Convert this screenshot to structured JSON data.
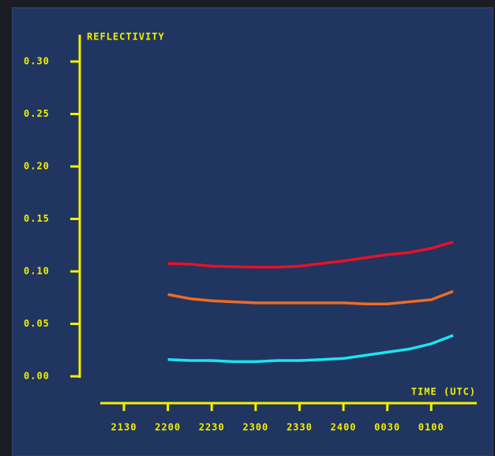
{
  "chart_data": {
    "type": "line",
    "y_label": "REFLECTIVITY",
    "x_label": "TIME (UTC)",
    "categories": [
      "2130",
      null,
      "2200",
      null,
      "2230",
      null,
      "2300",
      null,
      "2330",
      null,
      "2400",
      null,
      "0030",
      null,
      "0100",
      null
    ],
    "series": [
      {
        "color": "#e8102a",
        "values": [
          null,
          null,
          0.1075,
          0.107,
          0.105,
          0.1045,
          0.104,
          0.104,
          0.105,
          0.1075,
          0.11,
          0.113,
          0.116,
          0.118,
          0.122,
          0.128
        ]
      },
      {
        "color": "#f06a25",
        "values": [
          null,
          null,
          0.078,
          0.074,
          0.072,
          0.071,
          0.07,
          0.07,
          0.07,
          0.07,
          0.07,
          0.069,
          0.069,
          0.071,
          0.073,
          0.081
        ]
      },
      {
        "color": "#19e6f0",
        "values": [
          null,
          null,
          0.016,
          0.015,
          0.015,
          0.014,
          0.014,
          0.015,
          0.015,
          0.016,
          0.017,
          0.02,
          0.023,
          0.026,
          0.031,
          0.039
        ]
      }
    ],
    "ylim": [
      0,
      0.3
    ],
    "yticks": [
      {
        "value": 0,
        "label": "0.00"
      },
      0.05,
      {
        "value": 0.1,
        "label": "0.10"
      },
      0.15,
      {
        "value": 0.2,
        "label": "0.20"
      },
      0.25,
      {
        "value": 0.3,
        "label": "0.30"
      }
    ]
  }
}
